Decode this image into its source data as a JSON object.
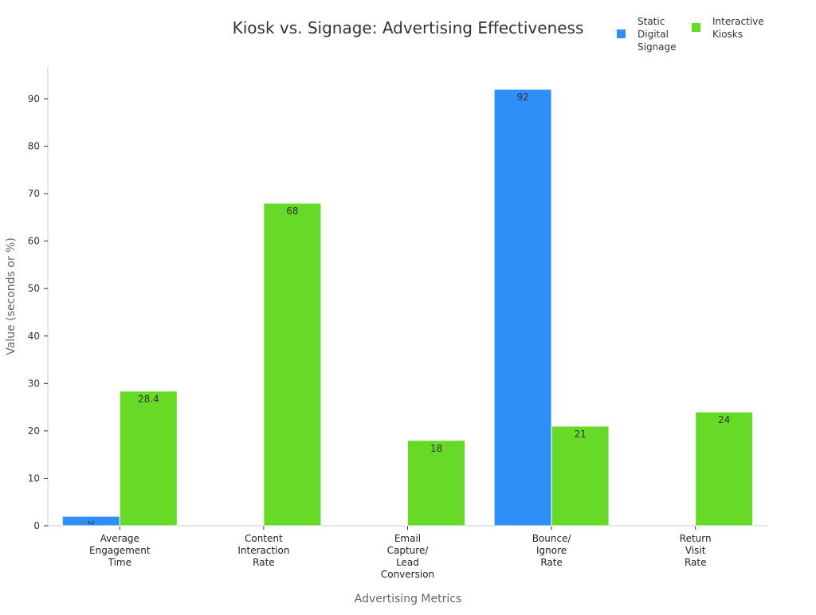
{
  "chart_data": {
    "type": "bar",
    "title": "Kiosk vs. Signage: Advertising Effectiveness",
    "xlabel": "Advertising Metrics",
    "ylabel": "Value (seconds or %)",
    "ylim": [
      0,
      97
    ],
    "yticks": [
      0,
      10,
      20,
      30,
      40,
      50,
      60,
      70,
      80,
      90
    ],
    "grid": false,
    "legend_position": "top-right",
    "categories": [
      "Average Engagement Time",
      "Content Interaction Rate",
      "Email Capture/ Lead Conversion",
      "Bounce/ Ignore Rate",
      "Return Visit Rate"
    ],
    "series": [
      {
        "name": "Static Digital Signage",
        "color": "#2e90f6",
        "values": [
          2,
          null,
          null,
          92,
          null
        ]
      },
      {
        "name": "Interactive Kiosks",
        "color": "#66da26",
        "values": [
          28.4,
          68,
          18,
          21,
          24
        ]
      }
    ]
  }
}
